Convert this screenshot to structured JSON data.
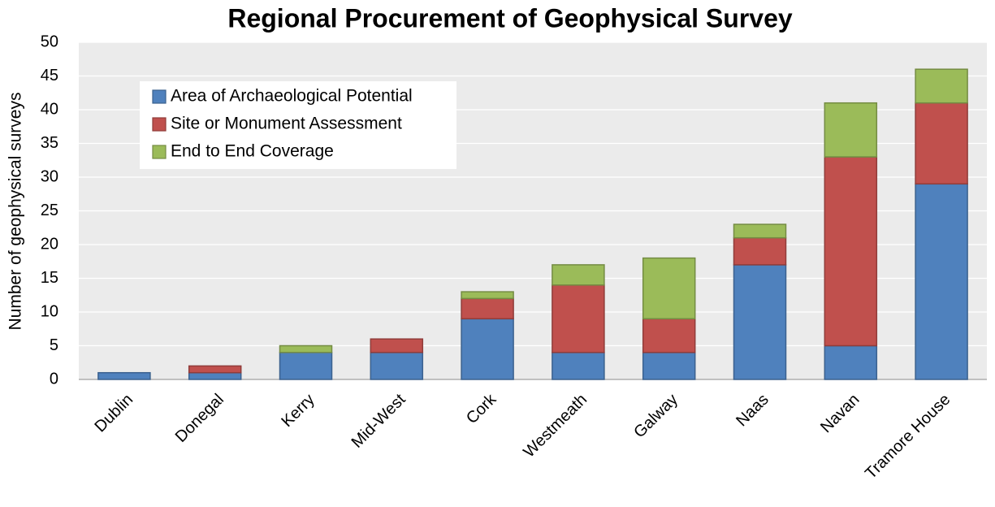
{
  "chart_data": {
    "type": "stacked_bar",
    "title": "Regional Procurement of Geophysical Survey",
    "y_label": "Number of geophysical surveys",
    "categories": [
      "Dublin",
      "Donegal",
      "Kerry",
      "Mid-West",
      "Cork",
      "Westmeath",
      "Galway",
      "Naas",
      "Navan",
      "Tramore House"
    ],
    "series": [
      {
        "name": "Area of Archaeological Potential",
        "color": "#4f81bd",
        "values": [
          1,
          1,
          4,
          4,
          9,
          4,
          4,
          17,
          5,
          29
        ]
      },
      {
        "name": "Site or Monument Assessment",
        "color": "#c0504d",
        "values": [
          0,
          1,
          0,
          2,
          3,
          10,
          5,
          4,
          28,
          12
        ]
      },
      {
        "name": "End to End Coverage",
        "color": "#9bbb59",
        "values": [
          0,
          0,
          1,
          0,
          1,
          3,
          9,
          2,
          8,
          5
        ]
      }
    ],
    "ylim": [
      0,
      50
    ],
    "yticks": [
      0,
      5,
      10,
      15,
      20,
      25,
      30,
      35,
      40,
      45,
      50
    ],
    "grid": true,
    "legend": "upper left"
  }
}
